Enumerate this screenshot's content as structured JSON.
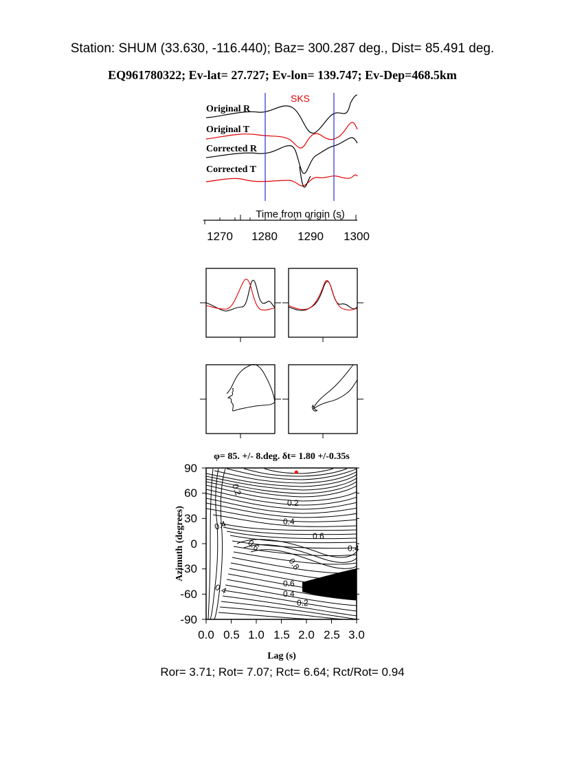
{
  "header": {
    "station_line": "Station: SHUM (33.630, -116.440); Baz=  300.287 deg., Dist=   85.491 deg.",
    "event_line": "EQ961780322; Ev-lat=  27.727; Ev-lon= 139.747; Ev-Dep=468.5km"
  },
  "colors": {
    "trace_black": "#000000",
    "trace_red": "#e00000",
    "window_line": "#2a2ad0",
    "best_marker": "#ff0000"
  },
  "seismogram_panel": {
    "phase_label": "SKS",
    "trace_labels": [
      "Original R",
      "Original T",
      "Corrected R",
      "Corrected T"
    ],
    "axis_label": "Time from origin (s)",
    "x_ticks": [
      "1270",
      "1280",
      "1290",
      "1300"
    ],
    "window_start": 1280,
    "window_end": 1295
  },
  "contour_plot": {
    "title": "φ= 85. +/- 8.deg.  δt= 1.80 +/-0.35s",
    "xlabel": "Lag (s)",
    "ylabel": "Azimuth (degrees)",
    "x_ticks": [
      "0.0",
      "0.5",
      "1.0",
      "1.5",
      "2.0",
      "2.5",
      "3.0"
    ],
    "y_ticks": [
      "90",
      "60",
      "30",
      "0",
      "-30",
      "-60",
      "-90"
    ],
    "contour_labels": [
      "0.2",
      "0.2",
      "0.4",
      "0.4",
      "0.6",
      "0.4",
      "0.6",
      "0.8",
      "0.6",
      "0.4",
      "0.2",
      "0.4"
    ]
  },
  "footer": {
    "ratios": "Ror= 3.71; Rot= 7.07; Rct= 6.64; Rct/Rot= 0.94"
  },
  "chart_data": {
    "type": "heatmap",
    "title": "φ= 85. +/- 8.deg.  δt= 1.80 +/-0.35s",
    "xlabel": "Lag (s)",
    "ylabel": "Azimuth (degrees)",
    "xlim": [
      0.0,
      3.0
    ],
    "ylim": [
      -90,
      90
    ],
    "best_fit": {
      "lag": 1.8,
      "azimuth": 85
    },
    "contour_levels": [
      0.2,
      0.4,
      0.6,
      0.8
    ]
  }
}
